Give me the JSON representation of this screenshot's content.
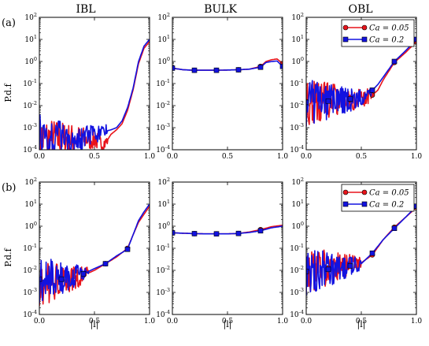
{
  "chart_data": {
    "type": "line",
    "figure": {
      "column_titles": [
        "IBL",
        "BULK",
        "OBL"
      ],
      "row_labels": [
        "(a)",
        "(b)"
      ],
      "ylabel": "P.d.f",
      "xlabel": "|l|",
      "xlim": [
        0.0,
        1.0
      ],
      "ylim": [
        0.0001,
        100
      ],
      "yscale": "log",
      "x_ticks": [
        "0.0",
        "0.5",
        "1.0"
      ],
      "y_ticks": [
        "10^-4",
        "10^-3",
        "10^-2",
        "10^-1",
        "10^0",
        "10^1",
        "10^2"
      ],
      "grid": false,
      "legend_position": "top-right",
      "legend_panels": [
        "a-OBL",
        "b-OBL"
      ],
      "series_styles": [
        {
          "name": "Ca = 0.05",
          "color": "#e8141b",
          "marker": "circle"
        },
        {
          "name": "Ca = 0.2",
          "color": "#1212e0",
          "marker": "square"
        }
      ]
    },
    "panels": [
      {
        "id": "a-IBL",
        "row": 0,
        "col": 0,
        "noisy_until": 0.62,
        "markers": [],
        "series": [
          {
            "name": "Ca = 0.05",
            "x": [
              0.0,
              0.1,
              0.2,
              0.3,
              0.4,
              0.5,
              0.55,
              0.6,
              0.65,
              0.7,
              0.75,
              0.8,
              0.85,
              0.9,
              0.95,
              1.0
            ],
            "y": [
              0.0003,
              0.0003,
              0.0003,
              0.0003,
              0.0003,
              0.0003,
              0.0002,
              0.0002,
              0.0005,
              0.0008,
              0.0015,
              0.006,
              0.05,
              0.8,
              4.0,
              8.0
            ]
          },
          {
            "name": "Ca = 0.2",
            "x": [
              0.0,
              0.1,
              0.2,
              0.3,
              0.4,
              0.5,
              0.55,
              0.6,
              0.65,
              0.7,
              0.75,
              0.8,
              0.85,
              0.9,
              0.95,
              1.0
            ],
            "y": [
              0.0003,
              0.0003,
              0.0003,
              0.00035,
              0.0004,
              0.0004,
              0.0005,
              0.0007,
              0.0008,
              0.001,
              0.002,
              0.008,
              0.06,
              1.0,
              5.0,
              10.0
            ]
          }
        ]
      },
      {
        "id": "a-BULK",
        "row": 0,
        "col": 1,
        "noisy_until": 0,
        "markers": [
          0.0,
          0.2,
          0.4,
          0.6,
          0.8,
          1.0
        ],
        "series": [
          {
            "name": "Ca = 0.05",
            "x": [
              0.0,
              0.1,
              0.2,
              0.3,
              0.4,
              0.5,
              0.6,
              0.7,
              0.8,
              0.85,
              0.9,
              0.95,
              1.0
            ],
            "y": [
              0.5,
              0.42,
              0.4,
              0.4,
              0.4,
              0.41,
              0.42,
              0.45,
              0.6,
              1.0,
              1.2,
              1.3,
              0.8
            ]
          },
          {
            "name": "Ca = 0.2",
            "x": [
              0.0,
              0.1,
              0.2,
              0.3,
              0.4,
              0.5,
              0.6,
              0.7,
              0.8,
              0.85,
              0.9,
              0.95,
              1.0
            ],
            "y": [
              0.5,
              0.42,
              0.4,
              0.4,
              0.4,
              0.41,
              0.42,
              0.45,
              0.55,
              0.9,
              1.0,
              1.05,
              0.6
            ]
          }
        ]
      },
      {
        "id": "a-OBL",
        "row": 0,
        "col": 2,
        "noisy_until": 0.6,
        "markers": [
          0.0,
          0.2,
          0.4,
          0.6,
          0.8,
          1.0
        ],
        "series": [
          {
            "name": "Ca = 0.05",
            "x": [
              0.0,
              0.1,
              0.2,
              0.3,
              0.4,
              0.5,
              0.6,
              0.65,
              0.7,
              0.8,
              0.9,
              1.0
            ],
            "y": [
              0.015,
              0.016,
              0.017,
              0.02,
              0.018,
              0.02,
              0.03,
              0.05,
              0.15,
              0.9,
              2.5,
              8.0
            ]
          },
          {
            "name": "Ca = 0.2",
            "x": [
              0.0,
              0.1,
              0.2,
              0.3,
              0.4,
              0.5,
              0.6,
              0.65,
              0.7,
              0.8,
              0.9,
              1.0
            ],
            "y": [
              0.014,
              0.015,
              0.016,
              0.018,
              0.02,
              0.025,
              0.05,
              0.09,
              0.2,
              1.0,
              3.0,
              10.0
            ]
          }
        ]
      },
      {
        "id": "b-IBL",
        "row": 1,
        "col": 0,
        "noisy_until": 0.45,
        "markers": [
          0.0,
          0.2,
          0.4,
          0.6,
          0.8
        ],
        "series": [
          {
            "name": "Ca = 0.05",
            "x": [
              0.0,
              0.1,
              0.2,
              0.3,
              0.4,
              0.5,
              0.6,
              0.7,
              0.8,
              0.85,
              0.9,
              0.95,
              1.0
            ],
            "y": [
              0.003,
              0.003,
              0.0035,
              0.004,
              0.006,
              0.01,
              0.02,
              0.04,
              0.1,
              0.4,
              1.5,
              3.5,
              8.0
            ]
          },
          {
            "name": "Ca = 0.2",
            "x": [
              0.0,
              0.1,
              0.2,
              0.3,
              0.4,
              0.5,
              0.6,
              0.7,
              0.8,
              0.85,
              0.9,
              0.95,
              1.0
            ],
            "y": [
              0.004,
              0.004,
              0.004,
              0.005,
              0.007,
              0.012,
              0.02,
              0.045,
              0.09,
              0.4,
              1.8,
              4.5,
              10.0
            ]
          }
        ]
      },
      {
        "id": "b-BULK",
        "row": 1,
        "col": 1,
        "noisy_until": 0,
        "markers": [
          0.0,
          0.2,
          0.4,
          0.6,
          0.8
        ],
        "series": [
          {
            "name": "Ca = 0.05",
            "x": [
              0.0,
              0.1,
              0.2,
              0.3,
              0.4,
              0.5,
              0.6,
              0.7,
              0.8,
              0.9,
              1.0
            ],
            "y": [
              0.5,
              0.48,
              0.46,
              0.45,
              0.45,
              0.45,
              0.47,
              0.55,
              0.7,
              0.95,
              1.1
            ]
          },
          {
            "name": "Ca = 0.2",
            "x": [
              0.0,
              0.1,
              0.2,
              0.3,
              0.4,
              0.5,
              0.6,
              0.7,
              0.8,
              0.9,
              1.0
            ],
            "y": [
              0.5,
              0.48,
              0.46,
              0.45,
              0.45,
              0.45,
              0.47,
              0.52,
              0.62,
              0.85,
              1.0
            ]
          }
        ]
      },
      {
        "id": "b-OBL",
        "row": 1,
        "col": 2,
        "noisy_until": 0.5,
        "markers": [
          0.0,
          0.2,
          0.4,
          0.6,
          0.8,
          1.0
        ],
        "series": [
          {
            "name": "Ca = 0.05",
            "x": [
              0.0,
              0.1,
              0.2,
              0.3,
              0.4,
              0.5,
              0.6,
              0.7,
              0.8,
              0.9,
              1.0
            ],
            "y": [
              0.012,
              0.012,
              0.013,
              0.015,
              0.018,
              0.022,
              0.05,
              0.25,
              0.9,
              2.5,
              7.0
            ]
          },
          {
            "name": "Ca = 0.2",
            "x": [
              0.0,
              0.1,
              0.2,
              0.3,
              0.4,
              0.5,
              0.6,
              0.7,
              0.8,
              0.9,
              1.0
            ],
            "y": [
              0.009,
              0.01,
              0.011,
              0.013,
              0.016,
              0.02,
              0.06,
              0.25,
              0.8,
              2.5,
              8.0
            ]
          }
        ]
      }
    ]
  }
}
